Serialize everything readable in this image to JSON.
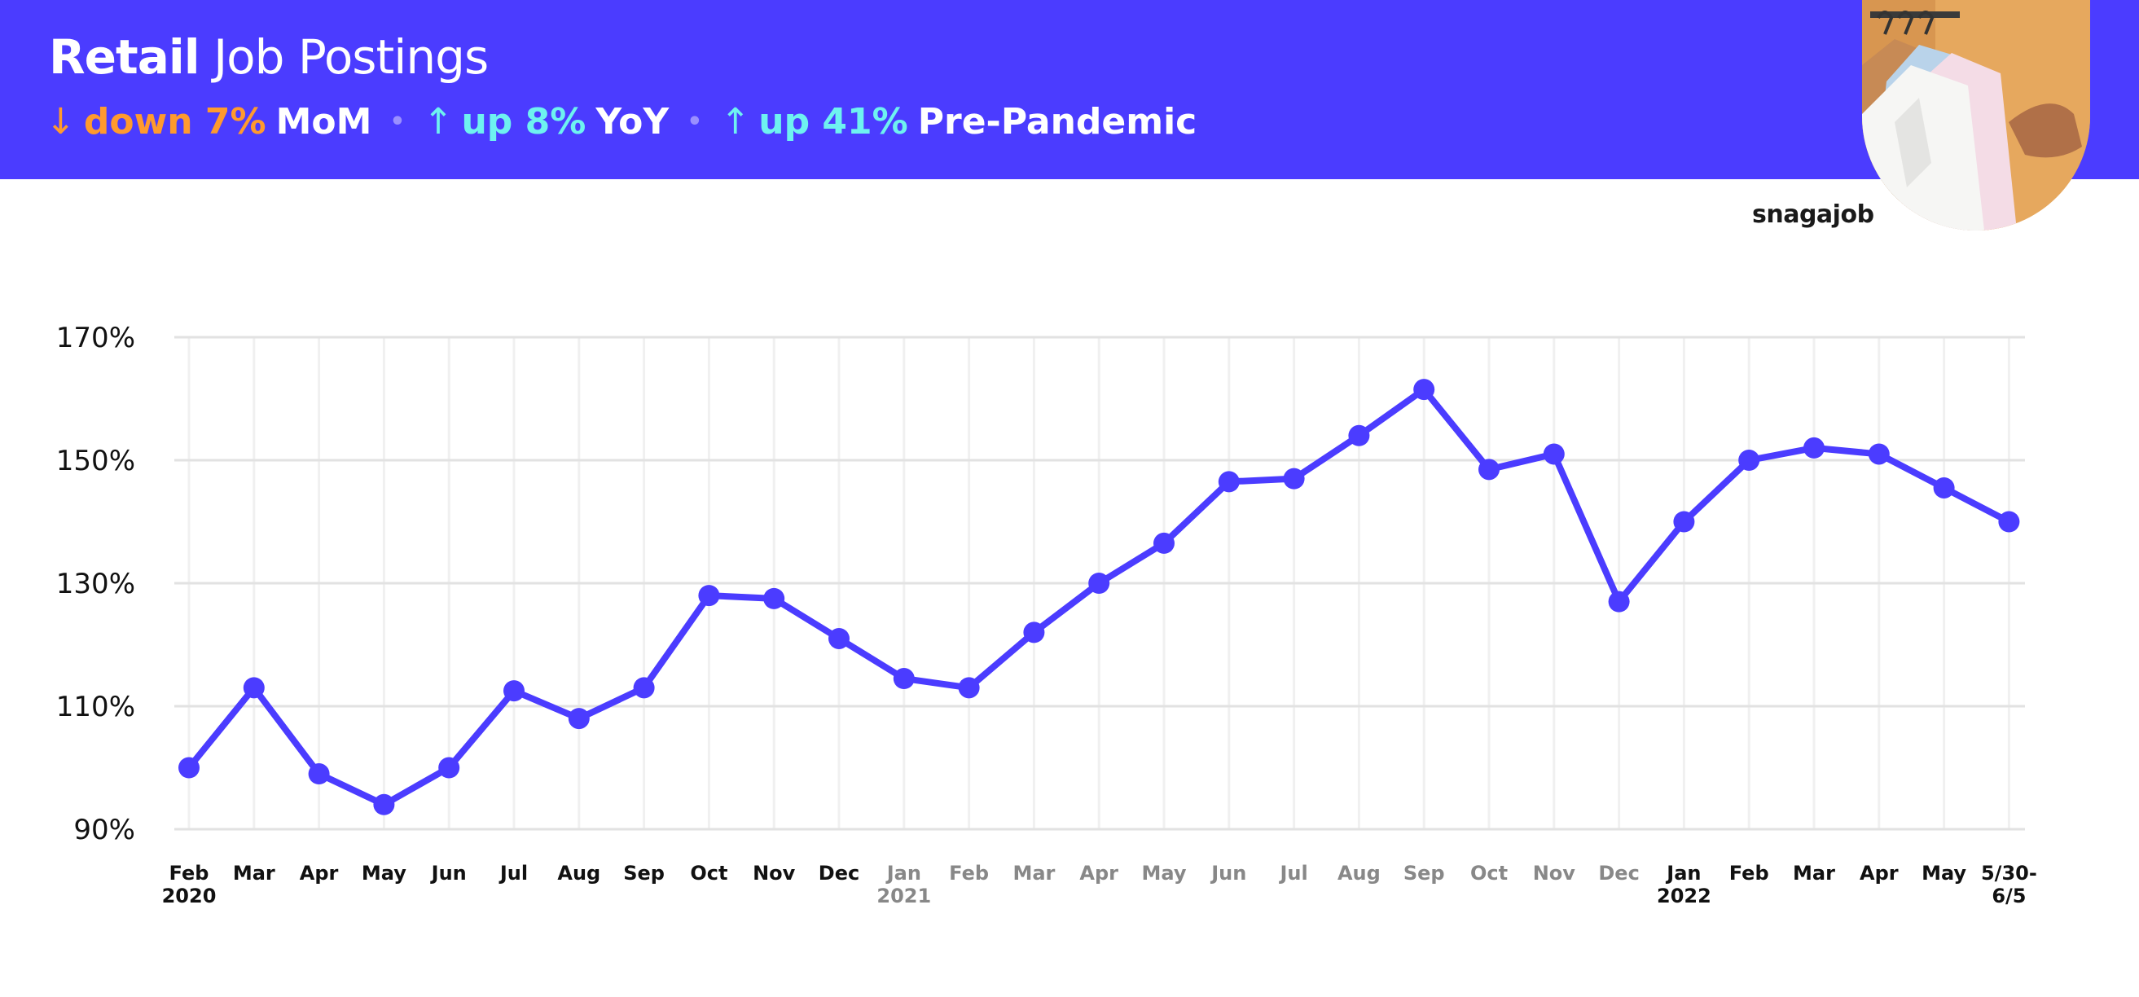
{
  "header": {
    "title_bold": "Retail",
    "title_rest": "Job Postings",
    "stats": [
      {
        "arrow": "↓",
        "change": "down 7%",
        "label": "MoM",
        "color": "#FF9A2E"
      },
      {
        "arrow": "↑",
        "change": "up 8%",
        "label": "YoY",
        "color": "#6EF2F0"
      },
      {
        "arrow": "↑",
        "change": "up 41%",
        "label": "Pre-Pandemic",
        "color": "#6EF2F0"
      }
    ],
    "background": "#4B3CFF"
  },
  "logo": "snagajob",
  "chart_data": {
    "type": "line",
    "title": "",
    "xlabel": "",
    "ylabel": "",
    "ylim": [
      90,
      170
    ],
    "yticks": [
      "170%",
      "150%",
      "130%",
      "110%",
      "90%"
    ],
    "grid": true,
    "line_color": "#4B3CFF",
    "categories": [
      {
        "line1": "Feb",
        "line2": "2020",
        "color": "#111111"
      },
      {
        "line1": "Mar",
        "line2": "",
        "color": "#111111"
      },
      {
        "line1": "Apr",
        "line2": "",
        "color": "#111111"
      },
      {
        "line1": "May",
        "line2": "",
        "color": "#111111"
      },
      {
        "line1": "Jun",
        "line2": "",
        "color": "#111111"
      },
      {
        "line1": "Jul",
        "line2": "",
        "color": "#111111"
      },
      {
        "line1": "Aug",
        "line2": "",
        "color": "#111111"
      },
      {
        "line1": "Sep",
        "line2": "",
        "color": "#111111"
      },
      {
        "line1": "Oct",
        "line2": "",
        "color": "#111111"
      },
      {
        "line1": "Nov",
        "line2": "",
        "color": "#111111"
      },
      {
        "line1": "Dec",
        "line2": "",
        "color": "#111111"
      },
      {
        "line1": "Jan",
        "line2": "2021",
        "color": "#888888"
      },
      {
        "line1": "Feb",
        "line2": "",
        "color": "#888888"
      },
      {
        "line1": "Mar",
        "line2": "",
        "color": "#888888"
      },
      {
        "line1": "Apr",
        "line2": "",
        "color": "#888888"
      },
      {
        "line1": "May",
        "line2": "",
        "color": "#888888"
      },
      {
        "line1": "Jun",
        "line2": "",
        "color": "#888888"
      },
      {
        "line1": "Jul",
        "line2": "",
        "color": "#888888"
      },
      {
        "line1": "Aug",
        "line2": "",
        "color": "#888888"
      },
      {
        "line1": "Sep",
        "line2": "",
        "color": "#888888"
      },
      {
        "line1": "Oct",
        "line2": "",
        "color": "#888888"
      },
      {
        "line1": "Nov",
        "line2": "",
        "color": "#888888"
      },
      {
        "line1": "Dec",
        "line2": "",
        "color": "#888888"
      },
      {
        "line1": "Jan",
        "line2": "2022",
        "color": "#111111"
      },
      {
        "line1": "Feb",
        "line2": "",
        "color": "#111111"
      },
      {
        "line1": "Mar",
        "line2": "",
        "color": "#111111"
      },
      {
        "line1": "Apr",
        "line2": "",
        "color": "#111111"
      },
      {
        "line1": "May",
        "line2": "",
        "color": "#111111"
      },
      {
        "line1": "5/30-",
        "line2": "6/5",
        "color": "#111111"
      }
    ],
    "values": [
      100,
      113,
      99,
      94,
      100,
      112.5,
      108,
      113,
      128,
      127.5,
      121,
      114.5,
      113,
      122,
      130,
      136.5,
      146.5,
      147,
      154,
      161.5,
      148.5,
      151,
      127,
      140,
      150,
      152,
      151,
      145.5,
      140
    ]
  }
}
